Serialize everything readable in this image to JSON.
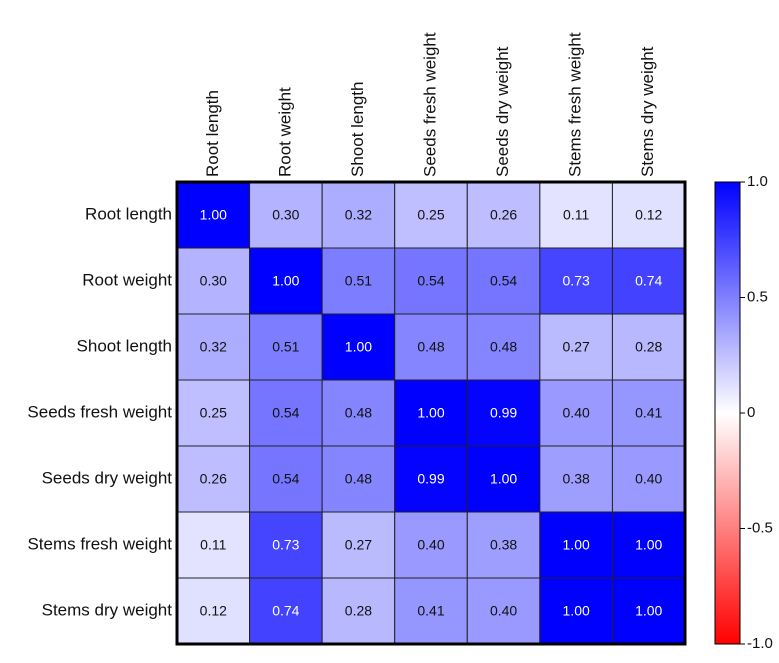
{
  "chart_data": {
    "type": "heatmap",
    "x_categories": [
      "Root length",
      "Root weight",
      "Shoot length",
      "Seeds fresh weight",
      "Seeds dry weight",
      "Stems fresh weight",
      "Stems  dry weight"
    ],
    "y_categories": [
      "Root length",
      "Root weight",
      "Shoot length",
      "Seeds fresh weight",
      "Seeds dry weight",
      "Stems fresh weight",
      "Stems  dry weight"
    ],
    "values": [
      [
        1,
        0.3,
        0.32,
        0.25,
        0.26,
        0.11,
        0.12
      ],
      [
        0.3,
        1,
        0.51,
        0.54,
        0.54,
        0.73,
        0.74
      ],
      [
        0.32,
        0.51,
        1,
        0.48,
        0.48,
        0.27,
        0.28
      ],
      [
        0.25,
        0.54,
        0.48,
        1,
        0.99,
        0.4,
        0.41
      ],
      [
        0.26,
        0.54,
        0.48,
        0.99,
        1,
        0.38,
        0.4
      ],
      [
        0.11,
        0.73,
        0.27,
        0.4,
        0.38,
        1,
        1
      ],
      [
        0.12,
        0.74,
        0.28,
        0.41,
        0.4,
        1,
        1
      ]
    ],
    "value_labels": [
      [
        "1.00",
        "0.30",
        "0.32",
        "0.25",
        "0.26",
        "0.11",
        "0.12"
      ],
      [
        "0.30",
        "1.00",
        "0.51",
        "0.54",
        "0.54",
        "0.73",
        "0.74"
      ],
      [
        "0.32",
        "0.51",
        "1.00",
        "0.48",
        "0.48",
        "0.27",
        "0.28"
      ],
      [
        "0.25",
        "0.54",
        "0.48",
        "1.00",
        "0.99",
        "0.40",
        "0.41"
      ],
      [
        "0.26",
        "0.54",
        "0.48",
        "0.99",
        "1.00",
        "0.38",
        "0.40"
      ],
      [
        "0.11",
        "0.73",
        "0.27",
        "0.40",
        "0.38",
        "1.00",
        "1.00"
      ],
      [
        "0.12",
        "0.74",
        "0.28",
        "0.41",
        "0.40",
        "1.00",
        "1.00"
      ]
    ],
    "colormap": [
      "#ff0000",
      "#ffffff",
      "#0000ff"
    ],
    "zlim": [
      -1,
      1
    ],
    "zticks": [
      {
        "value": 1,
        "label": "1.0"
      },
      0.5,
      0,
      -0.5,
      {
        "value": -1,
        "label": "-1.0"
      }
    ]
  }
}
